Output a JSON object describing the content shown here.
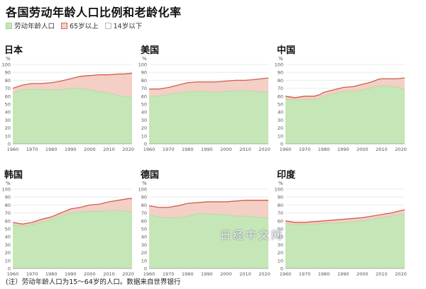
{
  "title": "各国劳动年龄人口比例和老龄化率",
  "legend": [
    {
      "label": "劳动年龄人口",
      "color": "#c5e6b6",
      "border": "#a8cf98"
    },
    {
      "label": "65岁以上",
      "color": "#f4cfc6",
      "border": "#cf6b5b"
    },
    {
      "label": "14岁以下",
      "color": "#ffffff",
      "border": "#bbbbbb"
    }
  ],
  "footnote": "(注）劳动年龄人口为15～64岁的人口。数据来自世界银行",
  "watermark": "日经中文网",
  "colors": {
    "working_fill": "#c5e6b6",
    "working_line": "#b7dca6",
    "elderly_fill": "#f4cfc6",
    "elderly_line": "#cf5e4e",
    "grid": "#e6e6e6"
  },
  "chart_data": [
    {
      "type": "area",
      "title": "日本",
      "ylabel": "%",
      "ylim": [
        0,
        100
      ],
      "yticks": [
        0,
        10,
        20,
        30,
        40,
        50,
        60,
        70,
        80,
        90,
        100
      ],
      "xlim": [
        1960,
        2022
      ],
      "xticks": [
        1960,
        1970,
        1980,
        1990,
        2000,
        2010,
        2020
      ],
      "series": [
        {
          "name": "劳动年龄人口",
          "x": [
            1960,
            1965,
            1970,
            1975,
            1980,
            1985,
            1990,
            1995,
            2000,
            2005,
            2010,
            2015,
            2018,
            2022
          ],
          "values": [
            64,
            68,
            69,
            68,
            68,
            68,
            70,
            70,
            68,
            66,
            64,
            61,
            59,
            59
          ]
        },
        {
          "name": "65岁以上",
          "x": [
            1960,
            1965,
            1970,
            1975,
            1980,
            1985,
            1990,
            1995,
            2000,
            2005,
            2010,
            2015,
            2018,
            2022
          ],
          "values": [
            70,
            74,
            76,
            76,
            77,
            79,
            82,
            85,
            86,
            87,
            87,
            88,
            88,
            89
          ]
        }
      ]
    },
    {
      "type": "area",
      "title": "美国",
      "ylabel": "%",
      "ylim": [
        0,
        100
      ],
      "yticks": [
        0,
        10,
        20,
        30,
        40,
        50,
        60,
        70,
        80,
        90,
        100
      ],
      "xlim": [
        1960,
        2022
      ],
      "xticks": [
        1960,
        1970,
        1980,
        1990,
        2000,
        2010,
        2020
      ],
      "series": [
        {
          "name": "劳动年龄人口",
          "x": [
            1960,
            1965,
            1970,
            1975,
            1980,
            1985,
            1990,
            1995,
            2000,
            2005,
            2010,
            2015,
            2022
          ],
          "values": [
            60,
            60,
            62,
            64,
            66,
            66,
            66,
            65,
            66,
            67,
            67,
            66,
            65
          ]
        },
        {
          "name": "65岁以上",
          "x": [
            1960,
            1965,
            1970,
            1975,
            1980,
            1985,
            1990,
            1995,
            2000,
            2005,
            2010,
            2015,
            2022
          ],
          "values": [
            69,
            69,
            71,
            74,
            77,
            78,
            78,
            78,
            79,
            80,
            80,
            81,
            83
          ]
        }
      ]
    },
    {
      "type": "area",
      "title": "中国",
      "ylabel": "%",
      "ylim": [
        0,
        100
      ],
      "yticks": [
        0,
        10,
        20,
        30,
        40,
        50,
        60,
        70,
        80,
        90,
        100
      ],
      "xlim": [
        1960,
        2022
      ],
      "xticks": [
        1960,
        1970,
        1980,
        1990,
        2000,
        2010,
        2020
      ],
      "series": [
        {
          "name": "劳动年龄人口",
          "x": [
            1960,
            1965,
            1970,
            1975,
            1978,
            1980,
            1985,
            1990,
            1995,
            2000,
            2005,
            2008,
            2010,
            2015,
            2018,
            2022
          ],
          "values": [
            57,
            55,
            56,
            56,
            57,
            60,
            63,
            66,
            66,
            68,
            71,
            73,
            73,
            73,
            71,
            69
          ]
        },
        {
          "name": "65岁以上",
          "x": [
            1960,
            1965,
            1970,
            1975,
            1978,
            1980,
            1985,
            1990,
            1995,
            2000,
            2005,
            2008,
            2010,
            2015,
            2018,
            2022
          ],
          "values": [
            60,
            58,
            60,
            60,
            62,
            65,
            68,
            71,
            72,
            75,
            78,
            81,
            82,
            82,
            82,
            83
          ]
        }
      ]
    },
    {
      "type": "area",
      "title": "韩国",
      "ylabel": "%",
      "ylim": [
        0,
        100
      ],
      "yticks": [
        0,
        10,
        20,
        30,
        40,
        50,
        60,
        70,
        80,
        90,
        100
      ],
      "xlim": [
        1960,
        2022
      ],
      "xticks": [
        1960,
        1970,
        1980,
        1990,
        2000,
        2010,
        2020
      ],
      "series": [
        {
          "name": "劳动年龄人口",
          "x": [
            1960,
            1965,
            1970,
            1975,
            1980,
            1985,
            1990,
            1995,
            2000,
            2005,
            2010,
            2015,
            2020,
            2022
          ],
          "values": [
            55,
            53,
            55,
            58,
            62,
            66,
            70,
            71,
            72,
            72,
            73,
            73,
            72,
            71
          ]
        },
        {
          "name": "65岁以上",
          "x": [
            1960,
            1965,
            1970,
            1975,
            1980,
            1985,
            1990,
            1995,
            2000,
            2005,
            2010,
            2015,
            2020,
            2022
          ],
          "values": [
            58,
            56,
            58,
            62,
            65,
            70,
            75,
            77,
            80,
            81,
            84,
            86,
            88,
            88
          ]
        }
      ]
    },
    {
      "type": "area",
      "title": "德国",
      "ylabel": "%",
      "ylim": [
        0,
        100
      ],
      "yticks": [
        0,
        10,
        20,
        30,
        40,
        50,
        60,
        70,
        80,
        90,
        100
      ],
      "xlim": [
        1960,
        2022
      ],
      "xticks": [
        1960,
        1970,
        1980,
        1990,
        2000,
        2010,
        2020
      ],
      "series": [
        {
          "name": "劳动年龄人口",
          "x": [
            1960,
            1965,
            1970,
            1975,
            1980,
            1985,
            1990,
            1995,
            2000,
            2005,
            2010,
            2015,
            2020,
            2022
          ],
          "values": [
            68,
            65,
            64,
            64,
            66,
            69,
            69,
            68,
            68,
            66,
            66,
            65,
            64,
            64
          ]
        },
        {
          "name": "65岁以上",
          "x": [
            1960,
            1965,
            1970,
            1975,
            1980,
            1985,
            1990,
            1995,
            2000,
            2005,
            2010,
            2015,
            2020,
            2022
          ],
          "values": [
            79,
            77,
            77,
            79,
            82,
            83,
            84,
            84,
            84,
            85,
            86,
            86,
            86,
            86
          ]
        }
      ]
    },
    {
      "type": "area",
      "title": "印度",
      "ylabel": "%",
      "ylim": [
        0,
        100
      ],
      "yticks": [
        0,
        10,
        20,
        30,
        40,
        50,
        60,
        70,
        80,
        90,
        100
      ],
      "xlim": [
        1960,
        2022
      ],
      "xticks": [
        1960,
        1970,
        1980,
        1990,
        2000,
        2010,
        2020
      ],
      "series": [
        {
          "name": "劳动年龄人口",
          "x": [
            1960,
            1965,
            1970,
            1975,
            1980,
            1985,
            1990,
            1995,
            2000,
            2005,
            2010,
            2015,
            2020,
            2022
          ],
          "values": [
            57,
            55,
            55,
            56,
            57,
            57,
            58,
            59,
            60,
            62,
            64,
            66,
            68,
            68
          ]
        },
        {
          "name": "65岁以上",
          "x": [
            1960,
            1965,
            1970,
            1975,
            1980,
            1985,
            1990,
            1995,
            2000,
            2005,
            2010,
            2015,
            2020,
            2022
          ],
          "values": [
            60,
            58,
            58,
            59,
            60,
            61,
            62,
            63,
            64,
            66,
            68,
            70,
            73,
            74
          ]
        }
      ]
    }
  ]
}
